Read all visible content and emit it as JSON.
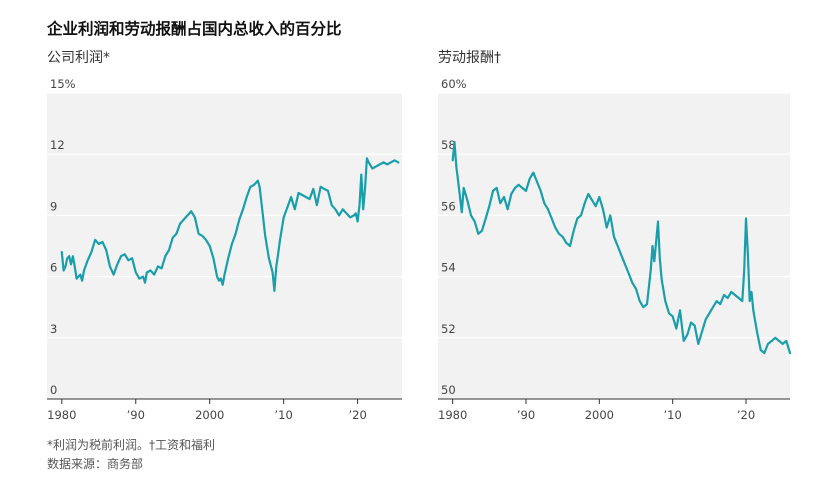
{
  "title": "企业利润和劳动报酬占国内总收入的百分比",
  "footnote": "*利润为税前利润。†工资和福利",
  "source": "数据来源：商务部",
  "chart_data": [
    {
      "type": "line",
      "title": "公司利润*",
      "ylim": [
        0,
        15
      ],
      "yticks": [
        0,
        3,
        6,
        9,
        12,
        15
      ],
      "ytick_labels": [
        "0",
        "3",
        "6",
        "9",
        "12",
        "15%"
      ],
      "xlim": [
        1978,
        2026
      ],
      "xticks": [
        1980,
        1990,
        2000,
        2010,
        2020
      ],
      "xtick_labels": [
        "1980",
        "’90",
        "2000",
        "’10",
        "’20"
      ],
      "grid": true,
      "color": "#1a9eaa",
      "series": [
        {
          "x": [
            1980,
            1980.25,
            1980.5,
            1980.75,
            1981,
            1981.25,
            1981.5,
            1981.75,
            1982,
            1982.5,
            1982.75,
            1983,
            1983.5,
            1984,
            1984.5,
            1985,
            1985.5,
            1986,
            1986.5,
            1987,
            1987.5,
            1988,
            1988.5,
            1989,
            1989.5,
            1990,
            1990.5,
            1991,
            1991.25,
            1991.5,
            1992,
            1992.5,
            1993,
            1993.5,
            1994,
            1994.5,
            1995,
            1995.5,
            1996,
            1996.5,
            1997,
            1997.5,
            1998,
            1998.5,
            1999,
            1999.5,
            2000,
            2000.5,
            2001,
            2001.25,
            2001.5,
            2001.75,
            2002,
            2002.5,
            2003,
            2003.5,
            2004,
            2004.5,
            2005,
            2005.5,
            2006,
            2006.5,
            2006.75,
            2007,
            2007.5,
            2008,
            2008.5,
            2008.75,
            2009,
            2009.25,
            2009.5,
            2010,
            2010.5,
            2011,
            2011.5,
            2012,
            2012.5,
            2013,
            2013.5,
            2014,
            2014.5,
            2015,
            2015.5,
            2016,
            2016.5,
            2017,
            2017.5,
            2018,
            2018.5,
            2019,
            2019.5,
            2019.75,
            2020,
            2020.25,
            2020.5,
            2020.75,
            2021,
            2021.25,
            2021.5,
            2022,
            2022.5,
            2023,
            2023.5,
            2024,
            2024.5,
            2025,
            2025.5
          ],
          "y": [
            7.2,
            6.3,
            6.5,
            6.9,
            7.0,
            6.6,
            7.0,
            6.5,
            5.9,
            6.1,
            5.8,
            6.3,
            6.8,
            7.2,
            7.8,
            7.6,
            7.7,
            7.3,
            6.5,
            6.1,
            6.6,
            7.0,
            7.1,
            6.8,
            6.9,
            6.2,
            5.9,
            6.0,
            5.7,
            6.2,
            6.3,
            6.1,
            6.5,
            6.4,
            7.0,
            7.3,
            7.9,
            8.1,
            8.6,
            8.8,
            9.0,
            9.2,
            8.9,
            8.1,
            8.0,
            7.8,
            7.5,
            6.9,
            6.0,
            5.8,
            5.9,
            5.6,
            6.1,
            6.9,
            7.6,
            8.1,
            8.8,
            9.3,
            9.9,
            10.4,
            10.5,
            10.7,
            10.4,
            9.6,
            8.0,
            6.9,
            6.2,
            5.3,
            6.5,
            7.1,
            7.8,
            8.9,
            9.4,
            9.9,
            9.3,
            10.1,
            10.0,
            9.9,
            9.8,
            10.3,
            9.5,
            10.4,
            10.3,
            10.2,
            9.5,
            9.3,
            9.0,
            9.3,
            9.1,
            8.9,
            9.0,
            9.1,
            8.7,
            9.5,
            11.0,
            9.3,
            10.3,
            11.8,
            11.6,
            11.3,
            11.4,
            11.5,
            11.6,
            11.5,
            11.6,
            11.7,
            11.6
          ]
        }
      ]
    },
    {
      "type": "line",
      "title": "劳动报酬†",
      "ylim": [
        50,
        60
      ],
      "yticks": [
        50,
        52,
        54,
        56,
        58,
        60
      ],
      "ytick_labels": [
        "50",
        "52",
        "54",
        "56",
        "58",
        "60%"
      ],
      "xlim": [
        1978,
        2026
      ],
      "xticks": [
        1980,
        1990,
        2000,
        2010,
        2020
      ],
      "xtick_labels": [
        "1980",
        "’90",
        "2000",
        "’10",
        "’20"
      ],
      "grid": true,
      "color": "#1a9eaa",
      "series": [
        {
          "x": [
            1980,
            1980.25,
            1980.5,
            1980.75,
            1981,
            1981.25,
            1981.5,
            1982,
            1982.5,
            1983,
            1983.5,
            1984,
            1984.5,
            1985,
            1985.5,
            1986,
            1986.5,
            1987,
            1987.5,
            1988,
            1988.5,
            1989,
            1989.5,
            1990,
            1990.5,
            1991,
            1991.5,
            1992,
            1992.5,
            1993,
            1993.5,
            1994,
            1994.5,
            1995,
            1995.5,
            1996,
            1996.5,
            1997,
            1997.5,
            1998,
            1998.5,
            1999,
            1999.5,
            2000,
            2000.5,
            2001,
            2001.5,
            2002,
            2002.5,
            2003,
            2003.5,
            2004,
            2004.5,
            2005,
            2005.5,
            2006,
            2006.5,
            2007,
            2007.25,
            2007.5,
            2008,
            2008.25,
            2008.5,
            2009,
            2009.5,
            2010,
            2010.5,
            2011,
            2011.5,
            2012,
            2012.5,
            2013,
            2013.5,
            2014,
            2014.5,
            2015,
            2015.5,
            2016,
            2016.5,
            2017,
            2017.5,
            2018,
            2018.5,
            2019,
            2019.5,
            2019.75,
            2020,
            2020.25,
            2020.5,
            2020.75,
            2021,
            2021.5,
            2022,
            2022.5,
            2023,
            2023.5,
            2024,
            2024.5,
            2025,
            2025.5,
            2026
          ],
          "y": [
            57.8,
            58.4,
            57.6,
            57.1,
            56.6,
            56.1,
            56.9,
            56.5,
            56.0,
            55.8,
            55.4,
            55.5,
            55.9,
            56.3,
            56.8,
            56.9,
            56.4,
            56.6,
            56.2,
            56.7,
            56.9,
            57.0,
            56.9,
            56.8,
            57.2,
            57.4,
            57.1,
            56.8,
            56.4,
            56.2,
            55.9,
            55.6,
            55.4,
            55.3,
            55.1,
            55.0,
            55.5,
            55.9,
            56.0,
            56.4,
            56.7,
            56.5,
            56.3,
            56.6,
            56.2,
            55.6,
            56.0,
            55.3,
            55.0,
            54.7,
            54.4,
            54.1,
            53.8,
            53.6,
            53.2,
            53.0,
            53.1,
            54.2,
            55.0,
            54.5,
            55.8,
            54.6,
            53.9,
            53.2,
            52.8,
            52.7,
            52.3,
            52.9,
            51.9,
            52.1,
            52.5,
            52.4,
            51.8,
            52.2,
            52.6,
            52.8,
            53.0,
            53.2,
            53.1,
            53.4,
            53.3,
            53.5,
            53.4,
            53.3,
            53.2,
            54.2,
            55.9,
            54.8,
            53.2,
            53.5,
            52.9,
            52.2,
            51.6,
            51.5,
            51.8,
            51.9,
            52.0,
            51.9,
            51.8,
            51.9,
            51.5
          ]
        }
      ]
    }
  ]
}
